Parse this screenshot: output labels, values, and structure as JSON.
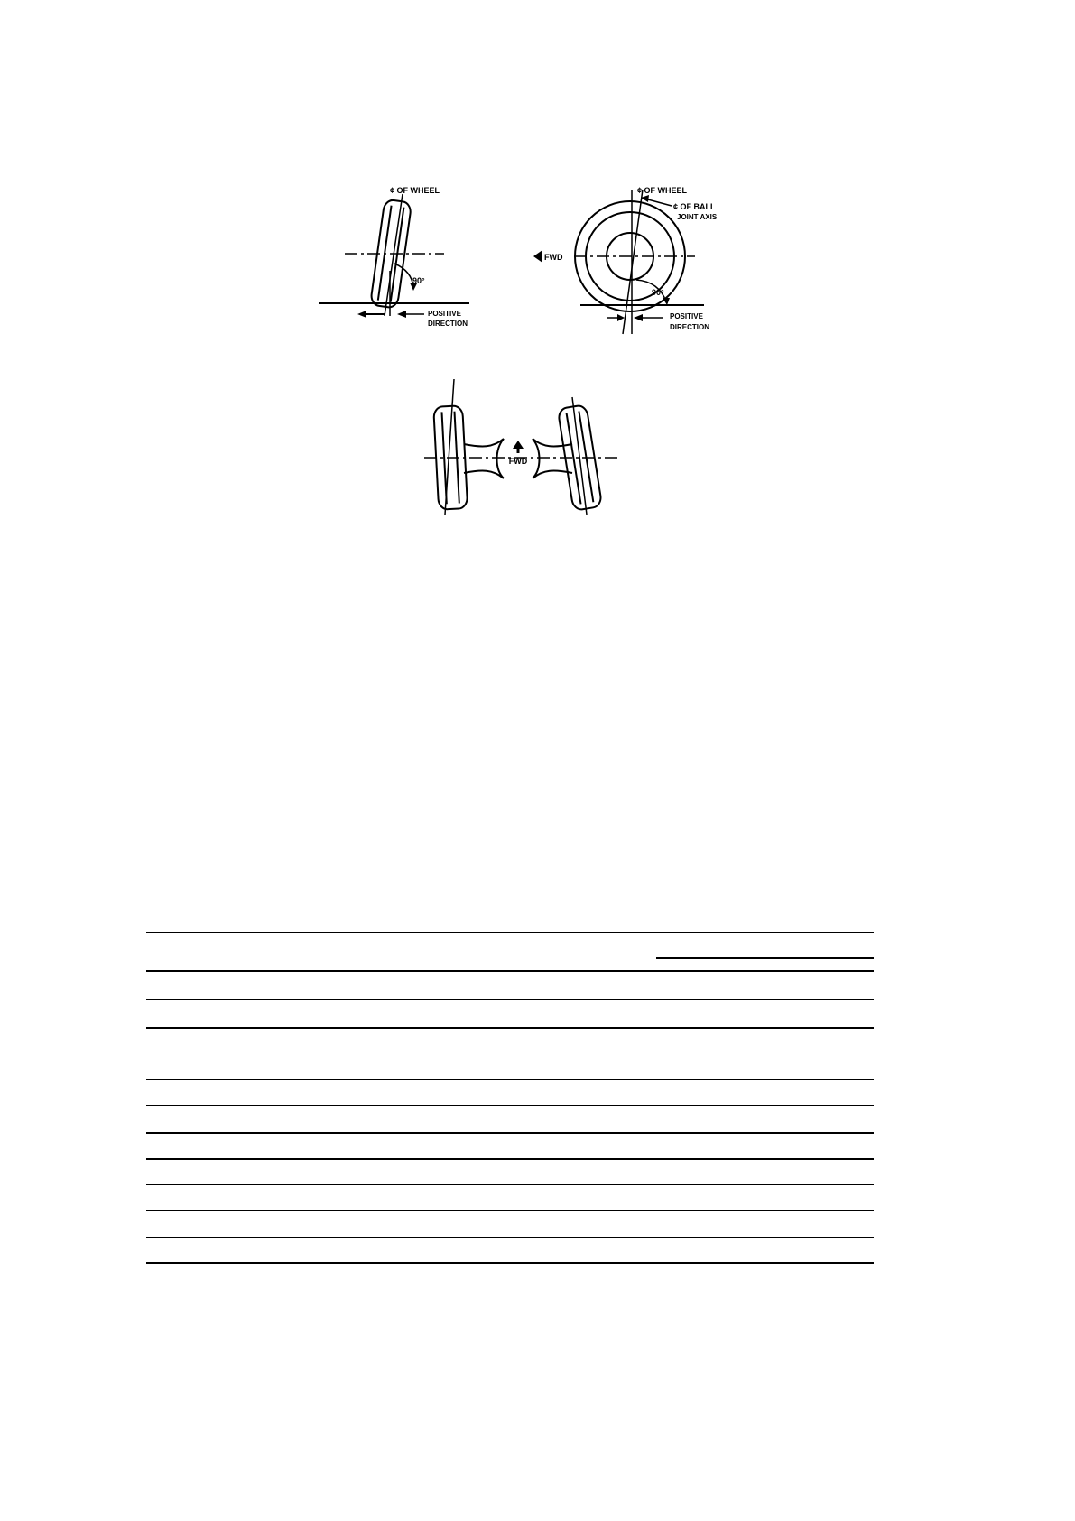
{
  "figure_camber": {
    "label_wheel_centerline": "¢ OF WHEEL",
    "label_angle": "90°",
    "label_positive_1": "POSITIVE",
    "label_positive_2": "DIRECTION"
  },
  "figure_caster": {
    "label_wheel_centerline": "¢ OF WHEEL",
    "label_ball_joint_1": "¢ OF BALL",
    "label_ball_joint_2": "JOINT AXIS",
    "label_forward": "FWD",
    "label_angle": "90°",
    "label_positive_1": "POSITIVE",
    "label_positive_2": "DIRECTION"
  },
  "figure_toe": {
    "label_forward": "FWD"
  },
  "table": {
    "rule_count": 13
  }
}
